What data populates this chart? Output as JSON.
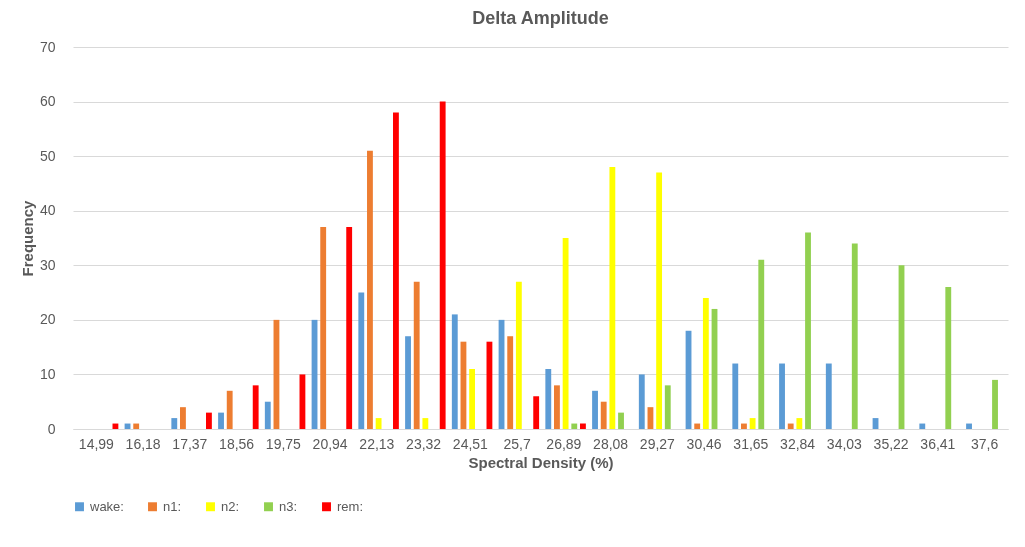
{
  "chart_data": {
    "type": "bar",
    "title": "Delta Amplitude",
    "xlabel": "Spectral Density (%)",
    "ylabel": "Frequency",
    "categories": [
      "14,99",
      "16,18",
      "17,37",
      "18,56",
      "19,75",
      "20,94",
      "22,13",
      "23,32",
      "24,51",
      "25,7",
      "26,89",
      "28,08",
      "29,27",
      "30,46",
      "31,65",
      "32,84",
      "34,03",
      "35,22",
      "36,41",
      "37,6"
    ],
    "series": [
      {
        "name": "wake:",
        "color": "#5b9bd5",
        "values": [
          0,
          1,
          2,
          3,
          5,
          20,
          25,
          17,
          21,
          20,
          11,
          7,
          10,
          18,
          12,
          12,
          12,
          2,
          1,
          1
        ]
      },
      {
        "name": "n1:",
        "color": "#ed7d31",
        "values": [
          0,
          1,
          4,
          7,
          20,
          37,
          51,
          27,
          16,
          17,
          8,
          5,
          4,
          1,
          1,
          1,
          0,
          0,
          0,
          0
        ]
      },
      {
        "name": "n2:",
        "color": "#ffff00",
        "values": [
          0,
          0,
          0,
          0,
          0,
          0,
          2,
          2,
          11,
          27,
          35,
          48,
          47,
          24,
          2,
          2,
          0,
          0,
          0,
          0
        ]
      },
      {
        "name": "n3:",
        "color": "#92d050",
        "values": [
          0,
          0,
          0,
          0,
          0,
          0,
          0,
          0,
          0,
          0,
          1,
          3,
          8,
          22,
          31,
          36,
          34,
          30,
          26,
          9
        ]
      },
      {
        "name": "rem:",
        "color": "#ff0000",
        "values": [
          1,
          0,
          3,
          8,
          10,
          37,
          58,
          60,
          16,
          6,
          1,
          0,
          0,
          0,
          0,
          0,
          0,
          0,
          0,
          0
        ]
      }
    ],
    "ylim": [
      0,
      70
    ],
    "yticks": [
      0,
      10,
      20,
      30,
      40,
      50,
      60,
      70
    ],
    "grid": "y",
    "legend": "bottom"
  }
}
